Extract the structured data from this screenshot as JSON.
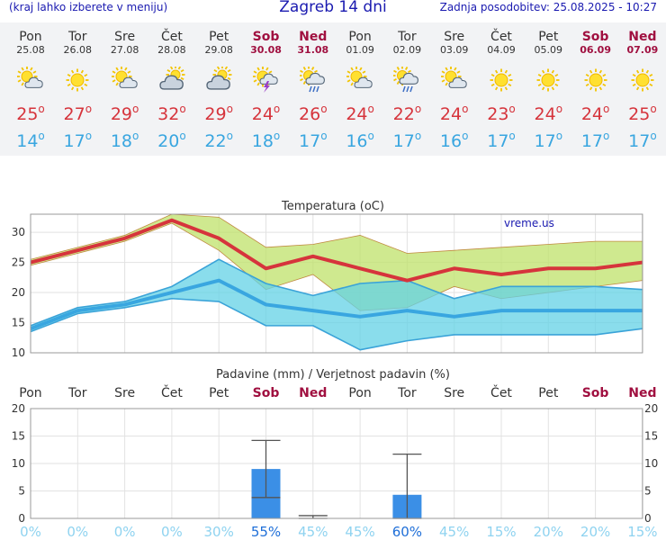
{
  "header": {
    "left_note": "(kraj lahko izberete v meniju)",
    "title": "Zagreb 14 dni",
    "updated": "Zadnja posodobitev: 25.08.2025 - 10:27"
  },
  "days": [
    {
      "name": "Pon",
      "date": "25.08",
      "weekend": false,
      "icon": "sun-cloud-icon",
      "max": "25",
      "min": "14"
    },
    {
      "name": "Tor",
      "date": "26.08",
      "weekend": false,
      "icon": "sun-icon",
      "max": "27",
      "min": "17"
    },
    {
      "name": "Sre",
      "date": "27.08",
      "weekend": false,
      "icon": "sun-cloud-icon",
      "max": "29",
      "min": "18"
    },
    {
      "name": "Čet",
      "date": "28.08",
      "weekend": false,
      "icon": "cloud-sun-icon",
      "max": "32",
      "min": "20"
    },
    {
      "name": "Pet",
      "date": "29.08",
      "weekend": false,
      "icon": "cloud-sun-icon",
      "max": "29",
      "min": "22"
    },
    {
      "name": "Sob",
      "date": "30.08",
      "weekend": true,
      "icon": "sun-lightning-icon",
      "max": "24",
      "min": "18"
    },
    {
      "name": "Ned",
      "date": "31.08",
      "weekend": true,
      "icon": "sun-cloud-rain-icon",
      "max": "26",
      "min": "17"
    },
    {
      "name": "Pon",
      "date": "01.09",
      "weekend": false,
      "icon": "sun-cloud-icon",
      "max": "24",
      "min": "16"
    },
    {
      "name": "Tor",
      "date": "02.09",
      "weekend": false,
      "icon": "sun-cloud-rain-icon",
      "max": "22",
      "min": "17"
    },
    {
      "name": "Sre",
      "date": "03.09",
      "weekend": false,
      "icon": "sun-cloud-icon",
      "max": "24",
      "min": "16"
    },
    {
      "name": "Čet",
      "date": "04.09",
      "weekend": false,
      "icon": "sun-icon",
      "max": "23",
      "min": "17"
    },
    {
      "name": "Pet",
      "date": "05.09",
      "weekend": false,
      "icon": "sun-icon",
      "max": "24",
      "min": "17"
    },
    {
      "name": "Sob",
      "date": "06.09",
      "weekend": true,
      "icon": "sun-icon",
      "max": "24",
      "min": "17"
    },
    {
      "name": "Ned",
      "date": "07.09",
      "weekend": true,
      "icon": "sun-icon",
      "max": "25",
      "min": "17"
    }
  ],
  "degree_symbol": "o",
  "colors": {
    "max_temp": "#d6343c",
    "min_temp": "#39a6e0",
    "weekend": "#a01040",
    "max_band": "#bfe26a",
    "min_band": "#63d2e6",
    "precip_bar": "#3b8fe6",
    "prob_low": "#8fd3f0",
    "prob_high": "#1f6fd8",
    "watermark": "#1a1ab0"
  },
  "chart_data": [
    {
      "type": "line",
      "title": "Temperatura (oC)",
      "watermark": "vreme.us",
      "ylim": [
        10,
        33
      ],
      "yticks": [
        "10",
        "15",
        "20",
        "25",
        "30"
      ],
      "grid": true,
      "series": [
        {
          "values": [
            25,
            27,
            29,
            32,
            29,
            24,
            26,
            24,
            22,
            24,
            23,
            24,
            24,
            25
          ]
        },
        {
          "values": [
            25.5,
            27.5,
            29.5,
            33,
            32.5,
            27.5,
            28,
            29.5,
            26.5,
            27,
            27.5,
            28,
            28.5,
            28.5
          ]
        },
        {
          "values": [
            24.5,
            26.5,
            28.5,
            31.5,
            27,
            20.5,
            23,
            17,
            17.5,
            21,
            19,
            20,
            21,
            22
          ]
        },
        {
          "values": [
            14,
            17,
            18,
            20,
            22,
            18,
            17,
            16,
            17,
            16,
            17,
            17,
            17,
            17
          ]
        },
        {
          "values": [
            14.5,
            17.5,
            18.5,
            21,
            25.5,
            21.5,
            19.5,
            21.5,
            22,
            19,
            21,
            21,
            21,
            20.5
          ]
        },
        {
          "values": [
            13.5,
            16.5,
            17.5,
            19,
            18.5,
            14.5,
            14.5,
            10.5,
            12,
            13,
            13,
            13,
            13,
            14
          ]
        }
      ]
    },
    {
      "type": "bar",
      "title": "Padavine (mm) / Verjetnost padavin (%)",
      "categories": [
        "Pon",
        "Tor",
        "Sre",
        "Čet",
        "Pet",
        "Sob",
        "Ned",
        "Pon",
        "Tor",
        "Sre",
        "Čet",
        "Pet",
        "Sob",
        "Ned"
      ],
      "weekend": [
        false,
        false,
        false,
        false,
        false,
        true,
        true,
        false,
        false,
        false,
        false,
        false,
        true,
        true
      ],
      "ylim": [
        0,
        20
      ],
      "yticks": [
        "0",
        "5",
        "10",
        "15",
        "20"
      ],
      "values": [
        0,
        0,
        0,
        0,
        0,
        9,
        0,
        0,
        4.3,
        0,
        0,
        0,
        0,
        0
      ],
      "errors": [
        null,
        null,
        null,
        null,
        null,
        [
          3.8,
          14.2
        ],
        [
          0,
          0.5
        ],
        null,
        [
          0,
          11.7
        ],
        null,
        null,
        null,
        null,
        null
      ],
      "probability": [
        "0%",
        "0%",
        "0%",
        "0%",
        "30%",
        "55%",
        "45%",
        "45%",
        "60%",
        "45%",
        "15%",
        "20%",
        "20%",
        "15%"
      ],
      "grid": true
    }
  ]
}
